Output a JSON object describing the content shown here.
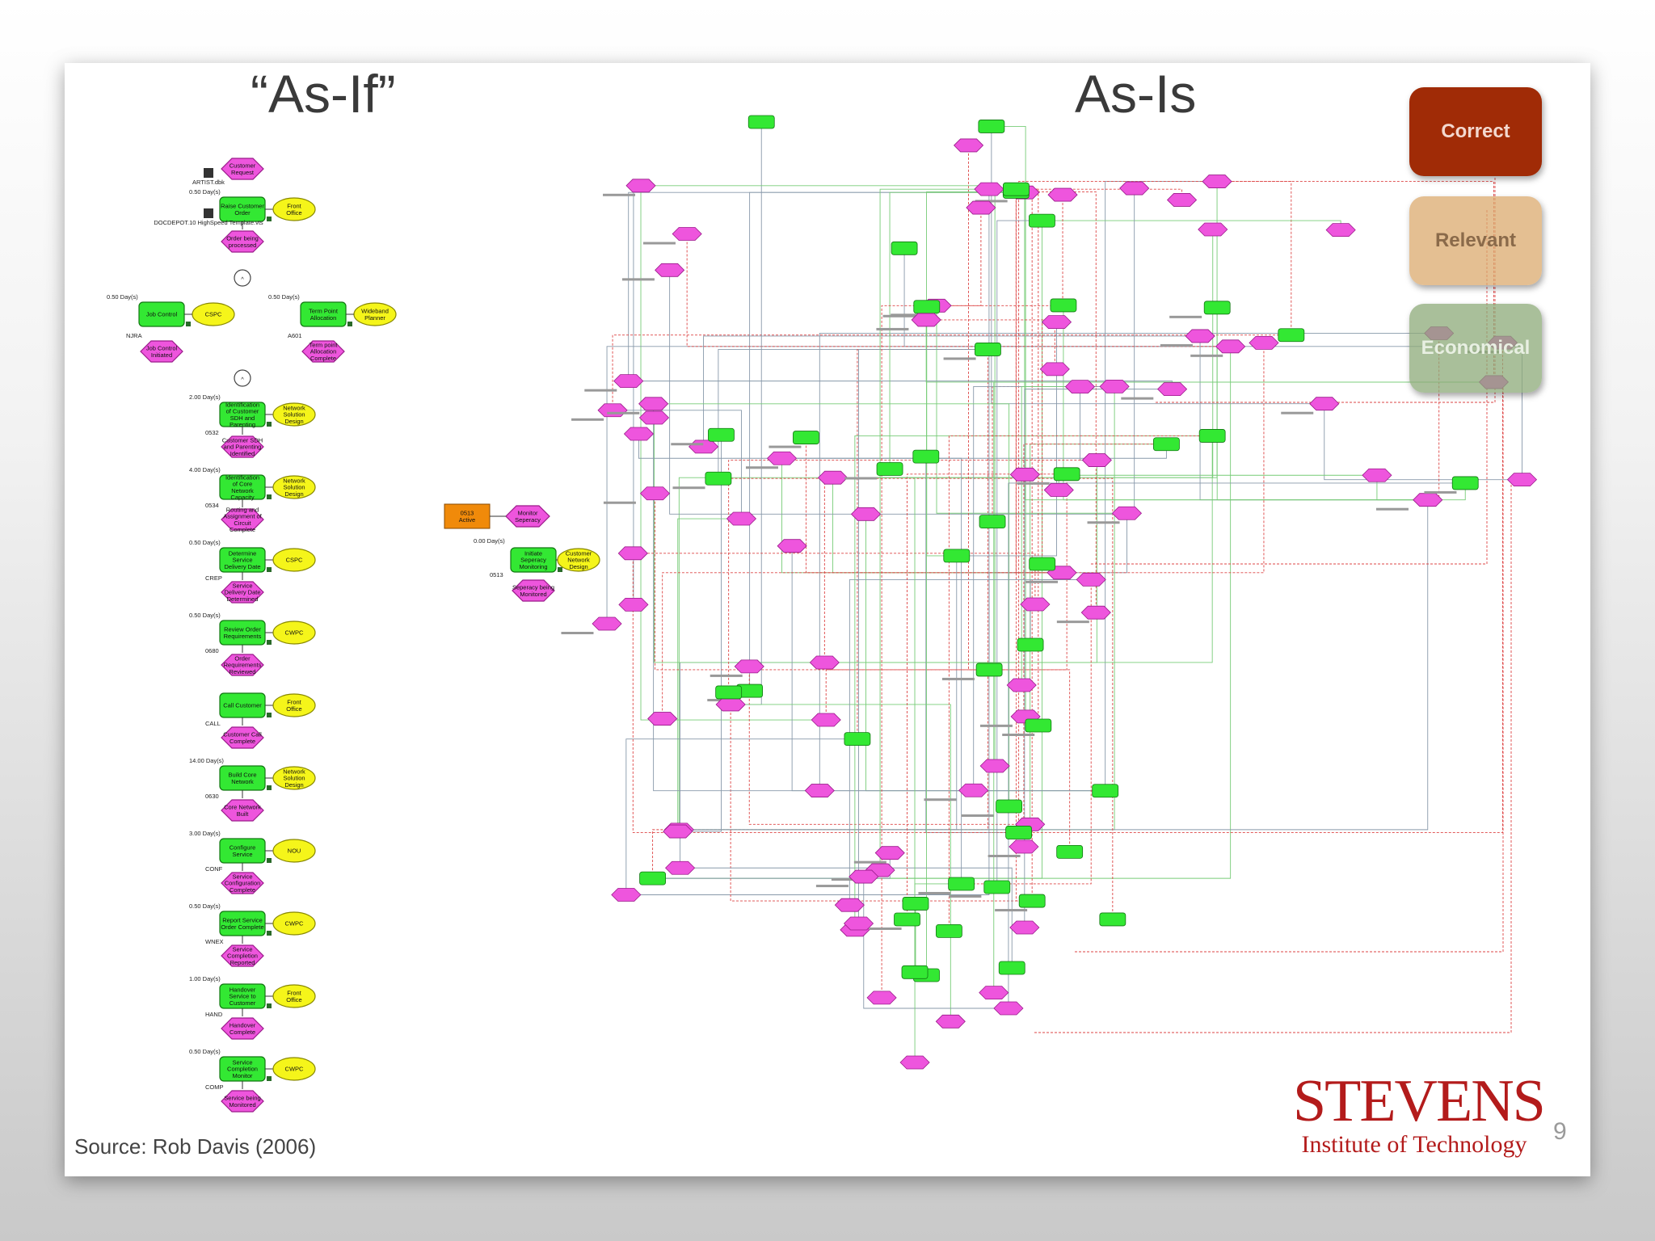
{
  "headings": {
    "as_if": "“As-If”",
    "as_is": "As-Is"
  },
  "source": "Source: Rob Davis (2006)",
  "page_number": "9",
  "logo": {
    "name": "STEVENS",
    "subtitle": "Institute of Technology"
  },
  "criteria": [
    "Correct",
    "Relevant",
    "Economical"
  ],
  "colors": {
    "function": "#33e833",
    "event": "#ee55dd",
    "org_unit": "#f5f51a",
    "accent": "#b31b1b",
    "activity": "#f08a0a"
  },
  "top_legend": [
    "ARTIST.dbk",
    "DOCDEPOT.10 HighSpeed Template.vts"
  ],
  "as_if_steps": [
    {
      "event": "Customer Request"
    },
    {
      "duration": "0.50 Day(s)",
      "function": "Raise Customer Order",
      "org": "Front Office",
      "code": ""
    },
    {
      "event": "Order being processed"
    },
    {
      "duration": "2.00 Day(s)",
      "function": "Identification of Customer SDH and Parenting",
      "org": "Network Solution Design",
      "code": "0532"
    },
    {
      "event": "Customer SDH and Parenting Identified"
    },
    {
      "duration": "4.00 Day(s)",
      "function": "Identification of Core Network Capacity",
      "org": "Network Solution Design",
      "code": "0534"
    },
    {
      "event": "Routing and Assignment of Circuit Complete"
    },
    {
      "duration": "0.50 Day(s)",
      "function": "Determine Service Delivery Date",
      "org": "CSPC",
      "code": "CREP"
    },
    {
      "event": "Service Delivery Date Determined"
    },
    {
      "duration": "0.50 Day(s)",
      "function": "Review Order Requirements",
      "org": "CWPC",
      "code": "0680"
    },
    {
      "event": "Order Requirements Reviewed"
    },
    {
      "duration": "",
      "function": "Call Customer",
      "org": "Front Office",
      "code": "CALL"
    },
    {
      "event": "Customer Call Complete"
    },
    {
      "duration": "14.00 Day(s)",
      "function": "Build Core Network",
      "org": "Network Solution Design",
      "code": "0630"
    },
    {
      "event": "Core Network Built"
    },
    {
      "duration": "3.00 Day(s)",
      "function": "Configure Service",
      "org": "NOU",
      "code": "CONF"
    },
    {
      "event": "Service Configuration Complete"
    },
    {
      "duration": "0.50 Day(s)",
      "function": "Report Service Order Complete",
      "org": "CWPC",
      "code": "WNEX"
    },
    {
      "event": "Service Completion Reported"
    },
    {
      "duration": "1.00 Day(s)",
      "function": "Handover Service to Customer",
      "org": "Front Office",
      "code": "HAND"
    },
    {
      "event": "Handover Complete"
    },
    {
      "duration": "0.50 Day(s)",
      "function": "Service Completion Monitor",
      "org": "CWPC",
      "code": "COMP"
    },
    {
      "event": "Service being Monitored"
    }
  ],
  "as_if_branches": [
    {
      "duration": "0.50 Day(s)",
      "function": "Job Control",
      "org": "CSPC",
      "code": "NJRA",
      "event": "Job Control Initiated"
    },
    {
      "duration": "0.50 Day(s)",
      "function": "Term Point Allocation",
      "org": "Wideband Planner",
      "code": "A601",
      "event": "Term point Allocation Complete"
    }
  ],
  "as_if_side": {
    "activity": "0513 Active",
    "monitor_event": "Monitor Seperacy",
    "duration": "0.00 Day(s)",
    "function": "Initiate Seperacy Monitoring",
    "org": "Customer Network Design",
    "code": "0513",
    "result_event": "Seperacy being Monitored"
  }
}
